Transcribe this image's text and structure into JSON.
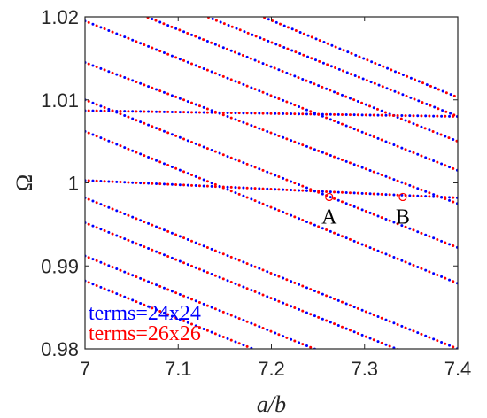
{
  "chart_data": {
    "type": "scatter",
    "xlabel": "a/b",
    "ylabel": "Ω",
    "xlim": [
      7.0,
      7.4
    ],
    "ylim": [
      0.98,
      1.02
    ],
    "x_ticks": [
      7.0,
      7.1,
      7.2,
      7.3,
      7.4
    ],
    "x_tick_labels": [
      "7",
      "7.1",
      "7.2",
      "7.3",
      "7.4"
    ],
    "y_ticks": [
      0.98,
      0.99,
      1.0,
      1.01,
      1.02
    ],
    "y_tick_labels": [
      "0.98",
      "0.99",
      "1",
      "1.01",
      "1.02"
    ],
    "grid": false,
    "legend_placement": "bottom-left",
    "series": [
      {
        "name": "terms=24x24",
        "color": "#0000ff",
        "x_offset": 0.0,
        "branches": [
          {
            "x": [
              7.0,
              7.4
            ],
            "y": [
              1.0195,
              1.0015
            ]
          },
          {
            "x": [
              7.0,
              7.4
            ],
            "y": [
              1.0145,
              0.9975
            ]
          },
          {
            "x": [
              7.0,
              7.4
            ],
            "y": [
              1.01,
              0.9922
            ]
          },
          {
            "x": [
              7.0,
              7.4
            ],
            "y": [
              1.0062,
              0.9879
            ]
          },
          {
            "x": [
              7.0,
              7.4
            ],
            "y": [
              0.9982,
              0.98
            ]
          },
          {
            "x": [
              7.0,
              7.4
            ],
            "y": [
              0.9952,
              0.977
            ]
          },
          {
            "x": [
              7.0,
              7.4
            ],
            "y": [
              0.9912,
              0.973
            ]
          },
          {
            "x": [
              7.0,
              7.4
            ],
            "y": [
              0.9882,
              0.97
            ]
          },
          {
            "x": [
              7.055,
              7.4
            ],
            "y": [
              1.0205,
              1.005
            ]
          },
          {
            "x": [
              7.12,
              7.4
            ],
            "y": [
              1.0205,
              1.008
            ]
          },
          {
            "x": [
              7.18,
              7.4
            ],
            "y": [
              1.0205,
              1.0103
            ]
          },
          {
            "x": [
              7.0,
              7.4
            ],
            "y": [
              1.0087,
              1.008
            ]
          },
          {
            "x": [
              7.0,
              7.4
            ],
            "y": [
              1.0003,
              0.9982
            ]
          }
        ]
      },
      {
        "name": "terms=26x26",
        "color": "#ff0000",
        "x_offset": 0.004,
        "branches": [
          {
            "x": [
              7.0,
              7.4
            ],
            "y": [
              1.0195,
              1.0015
            ]
          },
          {
            "x": [
              7.0,
              7.4
            ],
            "y": [
              1.0145,
              0.9975
            ]
          },
          {
            "x": [
              7.0,
              7.4
            ],
            "y": [
              1.01,
              0.9922
            ]
          },
          {
            "x": [
              7.0,
              7.4
            ],
            "y": [
              1.0062,
              0.9879
            ]
          },
          {
            "x": [
              7.0,
              7.4
            ],
            "y": [
              0.9982,
              0.98
            ]
          },
          {
            "x": [
              7.0,
              7.4
            ],
            "y": [
              0.9952,
              0.977
            ]
          },
          {
            "x": [
              7.0,
              7.4
            ],
            "y": [
              0.9912,
              0.973
            ]
          },
          {
            "x": [
              7.0,
              7.4
            ],
            "y": [
              0.9882,
              0.97
            ]
          },
          {
            "x": [
              7.055,
              7.4
            ],
            "y": [
              1.0205,
              1.005
            ]
          },
          {
            "x": [
              7.12,
              7.4
            ],
            "y": [
              1.0205,
              1.008
            ]
          },
          {
            "x": [
              7.18,
              7.4
            ],
            "y": [
              1.0205,
              1.0103
            ]
          },
          {
            "x": [
              7.0,
              7.4
            ],
            "y": [
              1.0087,
              1.008
            ]
          },
          {
            "x": [
              7.0,
              7.4
            ],
            "y": [
              1.0003,
              0.9982
            ]
          }
        ]
      }
    ],
    "annotations": [
      {
        "label": "A",
        "x": 7.262,
        "y": 0.9983
      },
      {
        "label": "B",
        "x": 7.341,
        "y": 0.9983
      }
    ]
  }
}
